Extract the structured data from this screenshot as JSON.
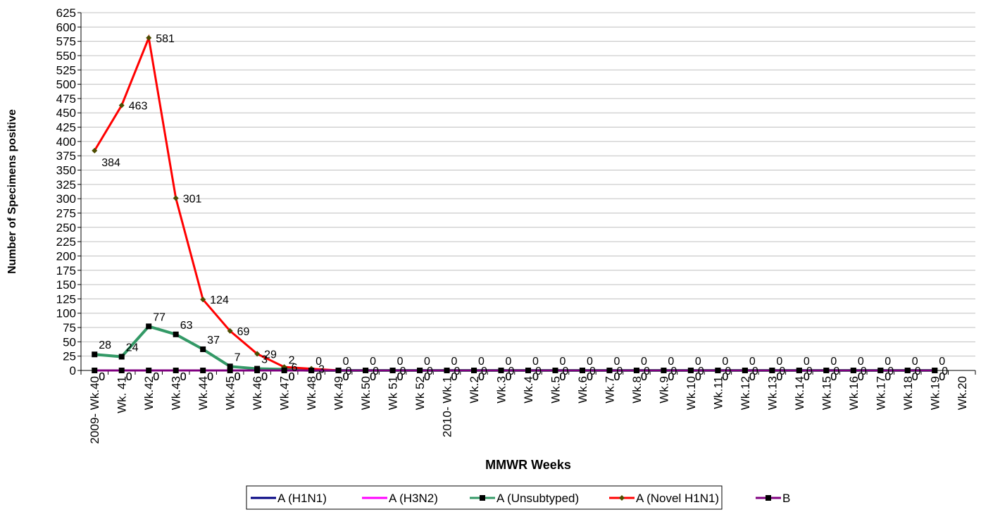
{
  "chart_data": {
    "type": "line",
    "y_label": "Number of Specimens positive",
    "x_label": "MMWR Weeks",
    "categories": [
      "2009- Wk.40",
      "Wk. 41",
      "Wk.42",
      "Wk.43",
      "Wk.44",
      "Wk.45",
      "Wk.46",
      "Wk.47",
      "Wk.48",
      "Wk.49",
      "Wk.50",
      "Wk 51",
      "Wk 52",
      "2010- Wk.1",
      "Wk.2",
      "Wk.3",
      "Wk.4",
      "Wk.5",
      "Wk.6",
      "Wk.7",
      "Wk.8",
      "Wk.9",
      "Wk.10",
      "Wk.11",
      "Wk.12",
      "Wk.13",
      "Wk.14",
      "Wk.15",
      "Wk.16",
      "Wk.17",
      "Wk.18",
      "Wk.19",
      "Wk.20"
    ],
    "series": [
      {
        "name": "A (H1N1)",
        "color": "#000080",
        "marker": "none",
        "values": [
          0,
          0,
          0,
          0,
          0,
          0,
          0,
          0,
          0,
          0,
          0,
          0,
          0,
          0,
          0,
          0,
          0,
          0,
          0,
          0,
          0,
          0,
          0,
          0,
          0,
          0,
          0,
          0,
          0,
          0,
          0,
          0,
          null
        ]
      },
      {
        "name": "A (H3N2)",
        "color": "#ff00ff",
        "marker": "none",
        "values": [
          0,
          0,
          0,
          0,
          0,
          0,
          0,
          0,
          0,
          0,
          0,
          0,
          0,
          0,
          0,
          0,
          0,
          0,
          0,
          0,
          0,
          0,
          0,
          0,
          0,
          0,
          0,
          0,
          0,
          0,
          0,
          0,
          null
        ]
      },
      {
        "name": "A (Unsubtyped)",
        "color": "#339966",
        "marker": "square",
        "values": [
          28,
          24,
          77,
          63,
          37,
          7,
          3,
          2,
          0,
          0,
          0,
          0,
          0,
          0,
          0,
          0,
          0,
          0,
          0,
          0,
          0,
          0,
          0,
          0,
          0,
          0,
          0,
          0,
          0,
          0,
          0,
          0,
          null
        ]
      },
      {
        "name": "A (Novel H1N1)",
        "color": "#ff0000",
        "marker": "diamond",
        "values": [
          384,
          463,
          581,
          301,
          124,
          69,
          29,
          6,
          3,
          0,
          0,
          0,
          0,
          0,
          0,
          0,
          0,
          0,
          0,
          0,
          0,
          0,
          0,
          0,
          0,
          0,
          0,
          0,
          0,
          0,
          0,
          0,
          null
        ]
      },
      {
        "name": "B",
        "color": "#800080",
        "marker": "square",
        "values": [
          0,
          0,
          0,
          0,
          0,
          0,
          0,
          0,
          0,
          0,
          0,
          0,
          0,
          0,
          0,
          0,
          0,
          0,
          0,
          0,
          0,
          0,
          0,
          0,
          0,
          0,
          0,
          0,
          0,
          0,
          0,
          0,
          null
        ]
      }
    ],
    "ylim": [
      0,
      625
    ],
    "yticks": [
      0,
      25,
      50,
      75,
      100,
      125,
      150,
      175,
      200,
      225,
      250,
      275,
      300,
      325,
      350,
      375,
      400,
      425,
      450,
      475,
      500,
      525,
      550,
      575,
      600,
      625
    ],
    "grid": true,
    "legend": "bottom"
  }
}
